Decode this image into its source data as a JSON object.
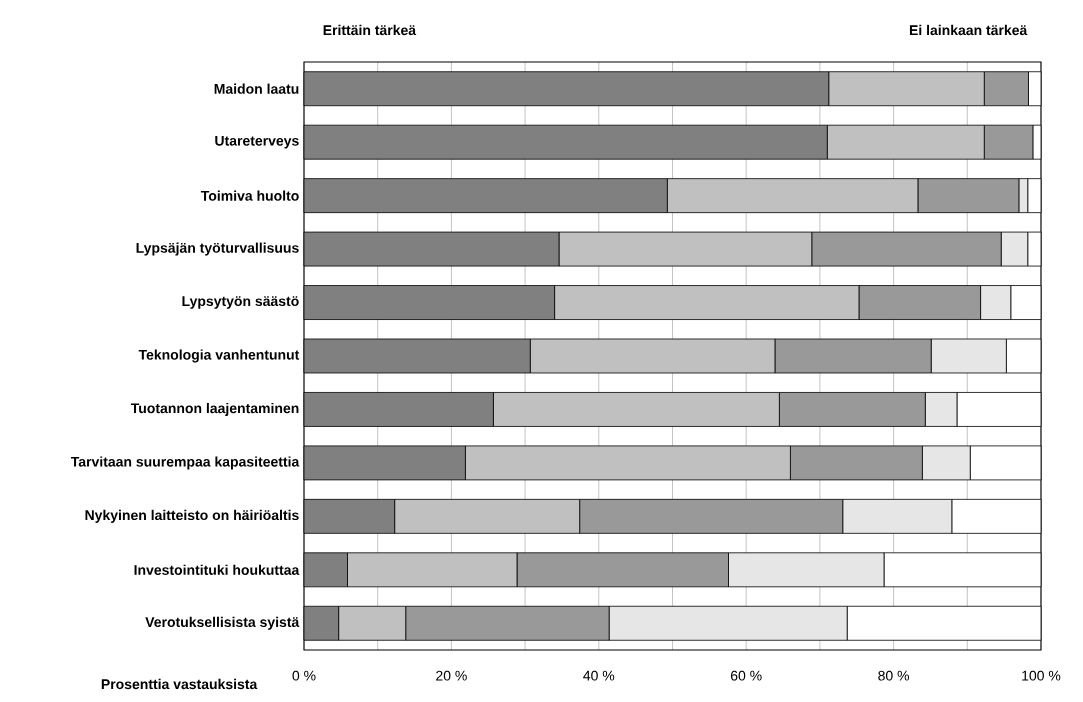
{
  "chart_data": {
    "type": "bar",
    "orientation": "horizontal",
    "stacked": true,
    "categories": [
      "Maidon laatu",
      "Utareterveys",
      "Toimiva huolto",
      "Lypsäjän työturvallisuus",
      "Lypsytyön säästö",
      "Teknologia vanhentunut",
      "Tuotannon laajentaminen",
      "Tarvitaan suurempaa kapasiteettia",
      "Nykyinen laitteisto on häiriöaltis",
      "Investointituki houkuttaa",
      "Verotuksellisista syistä"
    ],
    "series": [
      {
        "color": "#808080",
        "values": [
          71.2,
          71.0,
          49.3,
          34.6,
          34.0,
          30.7,
          25.7,
          21.9,
          12.3,
          5.9,
          4.7
        ]
      },
      {
        "color": "#c0c0c0",
        "values": [
          21.1,
          21.3,
          34.0,
          34.3,
          41.3,
          33.2,
          38.8,
          44.1,
          25.1,
          23.0,
          9.1
        ]
      },
      {
        "color": "#999999",
        "values": [
          6.0,
          6.6,
          13.7,
          25.7,
          16.5,
          21.2,
          19.8,
          17.9,
          35.7,
          28.7,
          27.6
        ]
      },
      {
        "color": "#e6e6e6",
        "values": [
          0,
          0,
          1.2,
          3.6,
          4.1,
          10.2,
          4.3,
          6.5,
          14.8,
          21.1,
          32.3
        ]
      },
      {
        "color": "#ffffff",
        "values": [
          1.7,
          1.1,
          1.8,
          1.8,
          4.1,
          4.7,
          11.4,
          9.6,
          12.1,
          21.3,
          26.3
        ]
      }
    ],
    "xlabel": "Prosenttia vastauksista",
    "annotations": [
      "Erittäin tärkeä",
      "Ei lainkaan tärkeä"
    ],
    "xlim": [
      0,
      100
    ],
    "xticks": [
      {
        "value": 0,
        "label": "0 %"
      },
      {
        "value": 10,
        "label": null
      },
      {
        "value": 20,
        "label": "20 %"
      },
      {
        "value": 30,
        "label": null
      },
      {
        "value": 40,
        "label": "40 %"
      },
      {
        "value": 50,
        "label": null
      },
      {
        "value": 60,
        "label": "60 %"
      },
      {
        "value": 70,
        "label": null
      },
      {
        "value": 80,
        "label": "80 %"
      },
      {
        "value": 90,
        "label": null
      },
      {
        "value": 100,
        "label": "100 %"
      }
    ],
    "grid": "x"
  }
}
